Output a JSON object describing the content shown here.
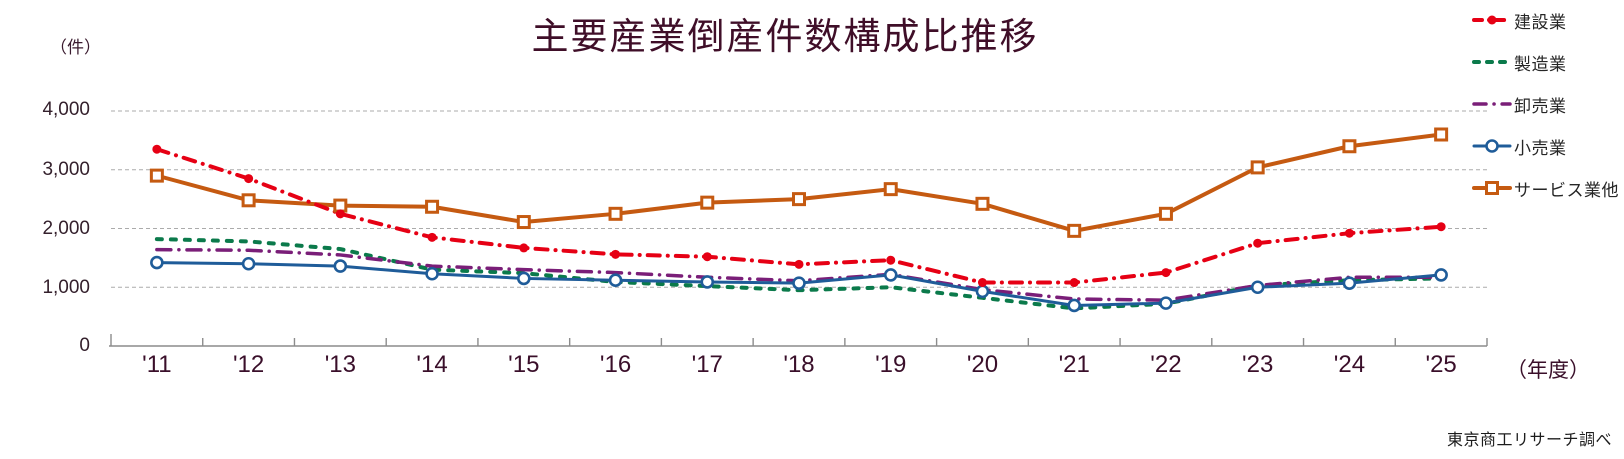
{
  "title": "主要産業倒産件数構成比推移",
  "unit_label": "（件）",
  "year_unit_label": "（年度）",
  "source_note": "東京商工リサーチ調べ",
  "grid_color": "#ABABAB",
  "axis_color": "#8C8C8C",
  "chart_data": {
    "type": "line",
    "title": "主要産業倒産件数構成比推移",
    "xlabel": "年度",
    "ylabel": "件",
    "ylim": [
      0,
      4000
    ],
    "grid": "horizontal-dashed",
    "legend_position": "right-top",
    "y_ticks": [
      0,
      1000,
      2000,
      3000,
      4000
    ],
    "y_tick_labels": [
      "0",
      "1,000",
      "2,000",
      "3,000",
      "4,000"
    ],
    "categories": [
      "'11",
      "'12",
      "'13",
      "'14",
      "'15",
      "'16",
      "'17",
      "'18",
      "'19",
      "'20",
      "'21",
      "'22",
      "'23",
      "'24",
      "'25"
    ],
    "series": [
      {
        "name": "建設業",
        "color": "#E60014",
        "line_style": "dash-dot",
        "marker": "filled-circle",
        "values": [
          3350,
          2850,
          2250,
          1850,
          1670,
          1560,
          1520,
          1390,
          1460,
          1080,
          1080,
          1250,
          1750,
          1920,
          2030
        ]
      },
      {
        "name": "製造業",
        "color": "#0B7A4B",
        "line_style": "dashed",
        "marker": "none",
        "values": [
          1820,
          1780,
          1650,
          1300,
          1240,
          1090,
          1020,
          950,
          1000,
          820,
          640,
          720,
          1030,
          1120,
          1150
        ]
      },
      {
        "name": "卸売業",
        "color": "#7A1E78",
        "line_style": "long-dash-dot",
        "marker": "none",
        "values": [
          1640,
          1630,
          1550,
          1360,
          1300,
          1250,
          1170,
          1110,
          1220,
          960,
          800,
          780,
          1030,
          1170,
          1170
        ]
      },
      {
        "name": "小売業",
        "color": "#1F5C99",
        "line_style": "solid",
        "marker": "open-circle",
        "values": [
          1420,
          1400,
          1360,
          1230,
          1150,
          1120,
          1090,
          1070,
          1210,
          930,
          690,
          730,
          1000,
          1070,
          1210
        ]
      },
      {
        "name": "サービス業他",
        "color": "#C55A11",
        "line_style": "solid",
        "marker": "open-square",
        "values": [
          2900,
          2480,
          2390,
          2370,
          2110,
          2250,
          2440,
          2500,
          2670,
          2420,
          1960,
          2250,
          3040,
          3400,
          3600
        ]
      }
    ]
  }
}
